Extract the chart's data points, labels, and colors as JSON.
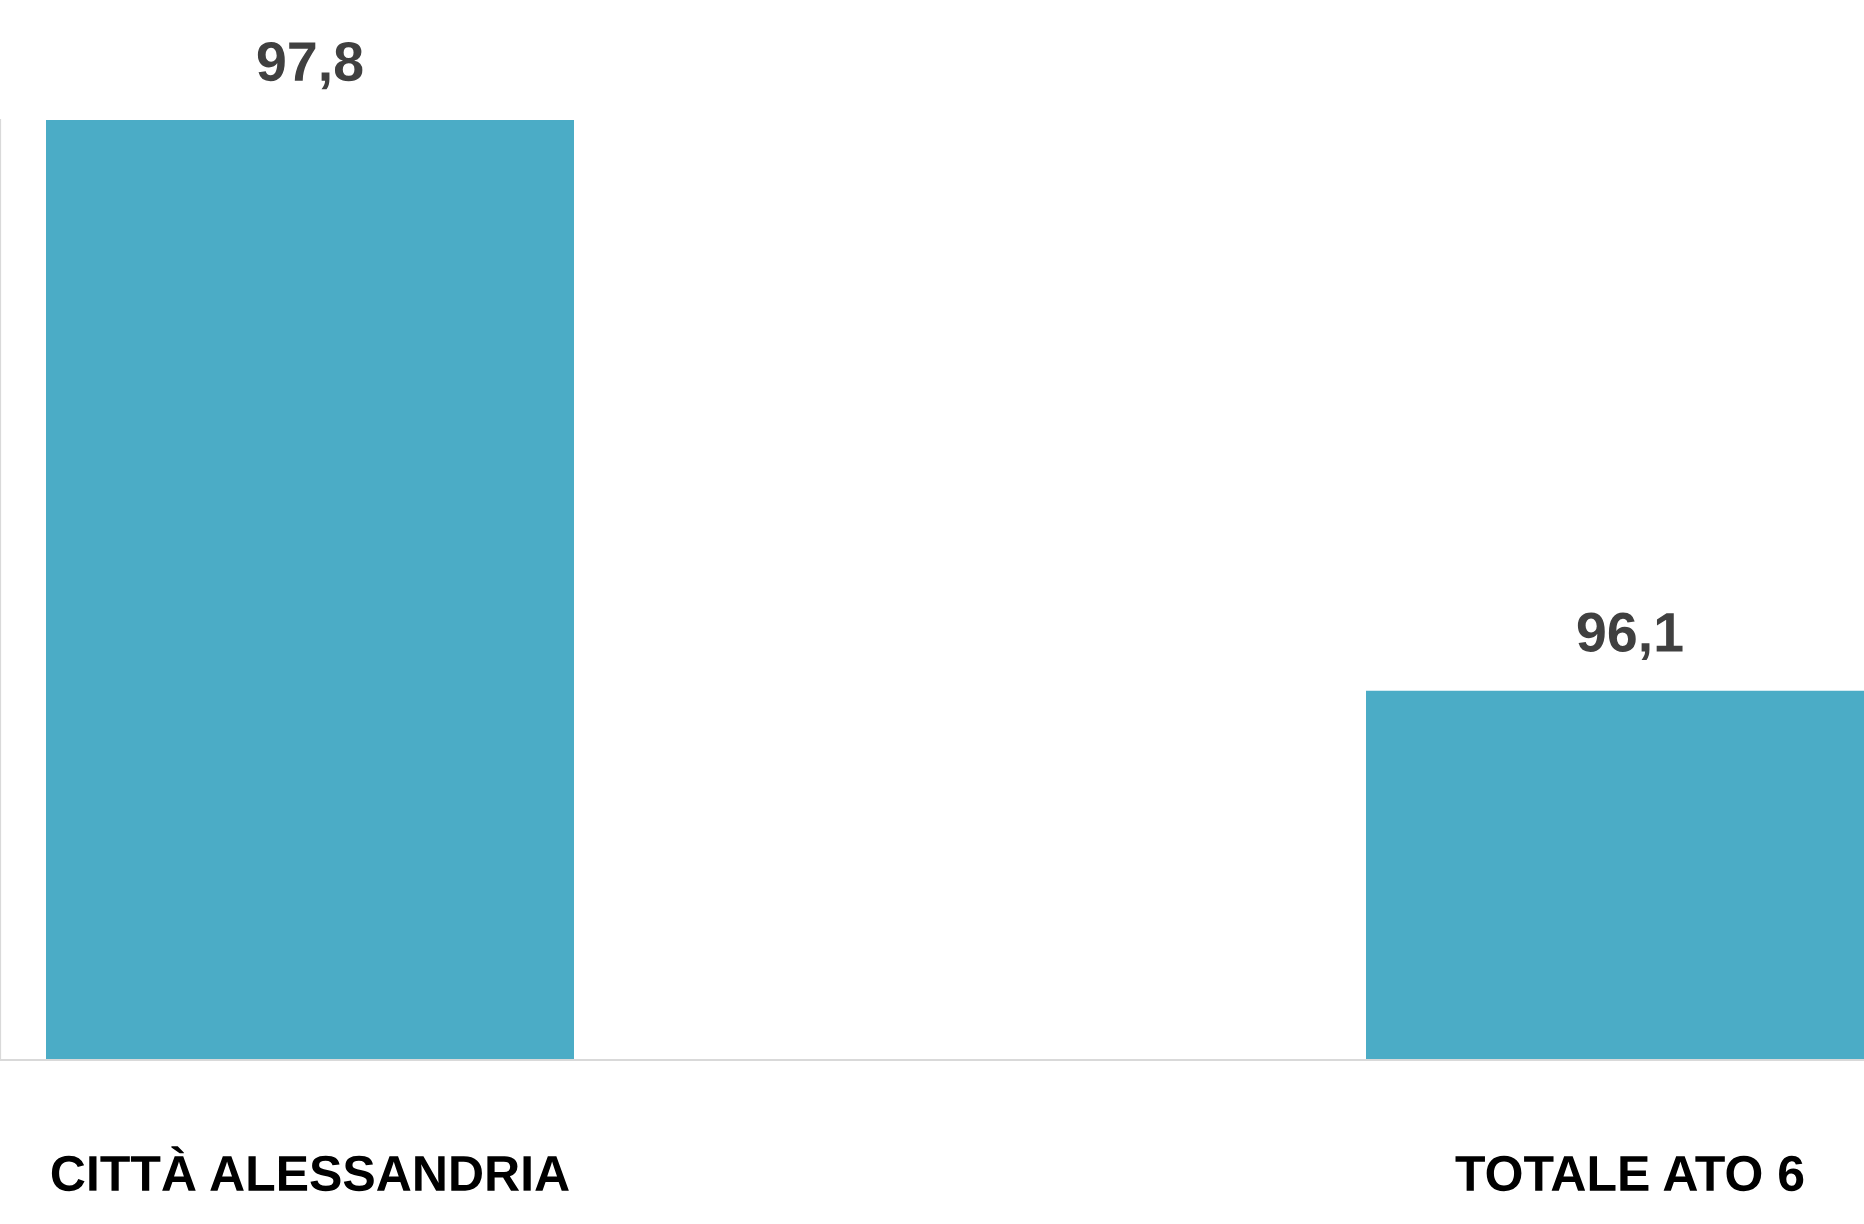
{
  "chart_data": {
    "type": "bar",
    "categories": [
      "CITTÀ ALESSANDRIA",
      "TOTALE ATO 6"
    ],
    "values": [
      97.8,
      96.1
    ],
    "value_labels": [
      "97,8",
      "96,1"
    ],
    "color": "#4bacc6",
    "ylim": [
      95,
      97.8
    ],
    "grid": false,
    "legend": false
  }
}
